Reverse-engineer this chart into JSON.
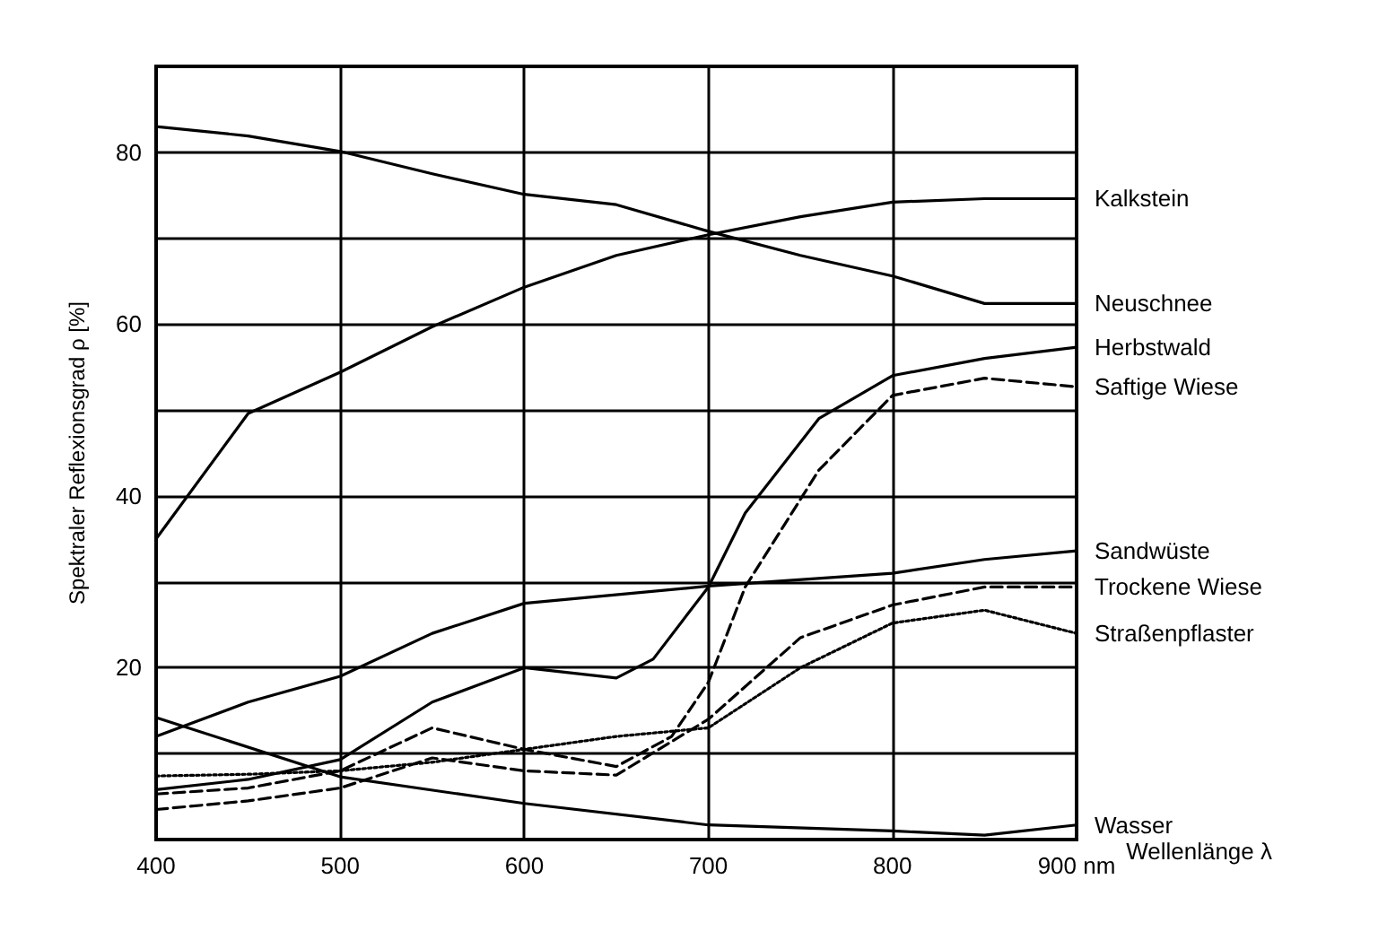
{
  "chart_data": {
    "type": "line",
    "xlabel": "Wellenlänge λ",
    "ylabel": "Spektraler Reflexionsgrad ρ [%]",
    "xlim": [
      400,
      900
    ],
    "xticks": [
      400,
      500,
      600,
      700,
      800,
      {
        "value": 900,
        "label": "900 nm"
      }
    ],
    "ylim": [
      0,
      90
    ],
    "yticks": [
      {
        "value": 0,
        "label": null
      },
      {
        "value": 10,
        "label": null
      },
      20,
      {
        "value": 30,
        "label": null
      },
      40,
      {
        "value": 50,
        "label": null
      },
      60,
      {
        "value": 70,
        "label": null
      },
      80,
      {
        "value": 90,
        "label": null
      }
    ],
    "grid": true,
    "legend": false,
    "marker": "none",
    "series": [
      {
        "name": "Kalkstein",
        "color": "#000000",
        "line_style": "solid",
        "x": [
          400,
          450,
          500,
          550,
          600,
          650,
          700,
          750,
          800,
          850,
          900
        ],
        "values": [
          35,
          49.6,
          54.4,
          59.7,
          64.3,
          68,
          70.4,
          72.5,
          74.2,
          74.6,
          74.6
        ]
      },
      {
        "name": "Neuschnee",
        "color": "#000000",
        "line_style": "solid",
        "x": [
          400,
          450,
          500,
          550,
          600,
          650,
          700,
          750,
          800,
          850,
          900
        ],
        "values": [
          83,
          81.9,
          80.1,
          77.5,
          75.1,
          73.9,
          70.8,
          68,
          65.6,
          62.4,
          62.4
        ]
      },
      {
        "name": "Herbstwald",
        "color": "#000000",
        "line_style": "solid",
        "x": [
          400,
          450,
          500,
          550,
          600,
          650,
          670,
          700,
          720,
          760,
          800,
          850,
          900
        ],
        "values": [
          5.8,
          7,
          9.3,
          16,
          20,
          18.8,
          21,
          29.4,
          38,
          49,
          54,
          56,
          57.3
        ]
      },
      {
        "name": "Saftige Wiese",
        "color": "#000000",
        "line_style": "dashed",
        "x": [
          400,
          450,
          500,
          550,
          600,
          650,
          680,
          700,
          720,
          760,
          800,
          850,
          900
        ],
        "values": [
          5.3,
          6,
          8,
          13,
          10.5,
          8.5,
          12,
          18.3,
          29.4,
          43,
          51.7,
          53.7,
          52.7
        ]
      },
      {
        "name": "Sandwüste",
        "color": "#000000",
        "line_style": "solid",
        "x": [
          400,
          450,
          500,
          550,
          600,
          700,
          800,
          850,
          900
        ],
        "values": [
          12,
          16,
          19,
          24,
          27.5,
          29.5,
          31,
          32.6,
          33.6
        ]
      },
      {
        "name": "Trockene Wiese",
        "color": "#000000",
        "line_style": "dashed",
        "x": [
          400,
          450,
          500,
          550,
          600,
          650,
          700,
          750,
          800,
          850,
          900
        ],
        "values": [
          3.5,
          4.5,
          6,
          9.5,
          8,
          7.5,
          14,
          23.5,
          27.3,
          29.4,
          29.4
        ]
      },
      {
        "name": "Straßenpflaster",
        "color": "#000000",
        "line_style": "dotted",
        "x": [
          400,
          450,
          500,
          550,
          600,
          650,
          700,
          750,
          800,
          850,
          900
        ],
        "values": [
          7.4,
          7.6,
          8,
          9,
          10.5,
          12,
          13,
          20,
          25.2,
          26.7,
          24
        ]
      },
      {
        "name": "Wasser",
        "color": "#000000",
        "line_style": "solid",
        "x": [
          400,
          500,
          600,
          700,
          800,
          850,
          900
        ],
        "values": [
          14.2,
          7.3,
          4.2,
          1.7,
          1,
          0.5,
          1.7
        ]
      }
    ]
  }
}
